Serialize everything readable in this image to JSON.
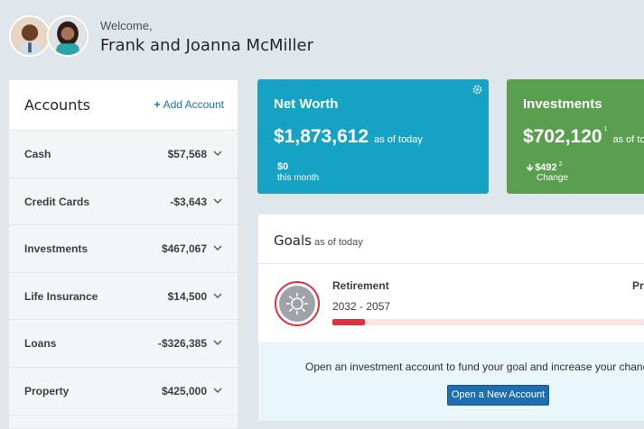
{
  "header": {
    "welcome": "Welcome,",
    "names": "Frank and Joanna McMiller",
    "avatars": [
      "avatar-man",
      "avatar-woman"
    ]
  },
  "accounts": {
    "title": "Accounts",
    "add_label": "Add Account",
    "add_icon": "+",
    "rows": [
      {
        "label": "Cash",
        "amount": "$57,568"
      },
      {
        "label": "Credit Cards",
        "amount": "-$3,643"
      },
      {
        "label": "Investments",
        "amount": "$467,067"
      },
      {
        "label": "Life Insurance",
        "amount": "$14,500"
      },
      {
        "label": "Loans",
        "amount": "-$326,385"
      },
      {
        "label": "Property",
        "amount": "$425,000"
      }
    ]
  },
  "net_worth": {
    "title": "Net Worth",
    "value": "$1,873,612",
    "as_of": "as of today",
    "change_value": "$0",
    "change_label": "this month",
    "color": "#16a2c5"
  },
  "investments": {
    "title": "Investments",
    "value": "$702,120",
    "value_sup": "1",
    "as_of": "as of to",
    "change_value": "$492",
    "change_sup": "2",
    "change_label": "Change",
    "color": "#5a9e4f"
  },
  "goals": {
    "title": "Goals",
    "as_of": "as of today",
    "goal": {
      "name": "Retirement",
      "years": "2032 - 2057",
      "right_label": "Pr",
      "progress_percent": 10,
      "color": "#d9343f"
    },
    "cta_text": "Open an investment account to fund your goal and increase your chances o",
    "cta_button": "Open a New Account"
  }
}
